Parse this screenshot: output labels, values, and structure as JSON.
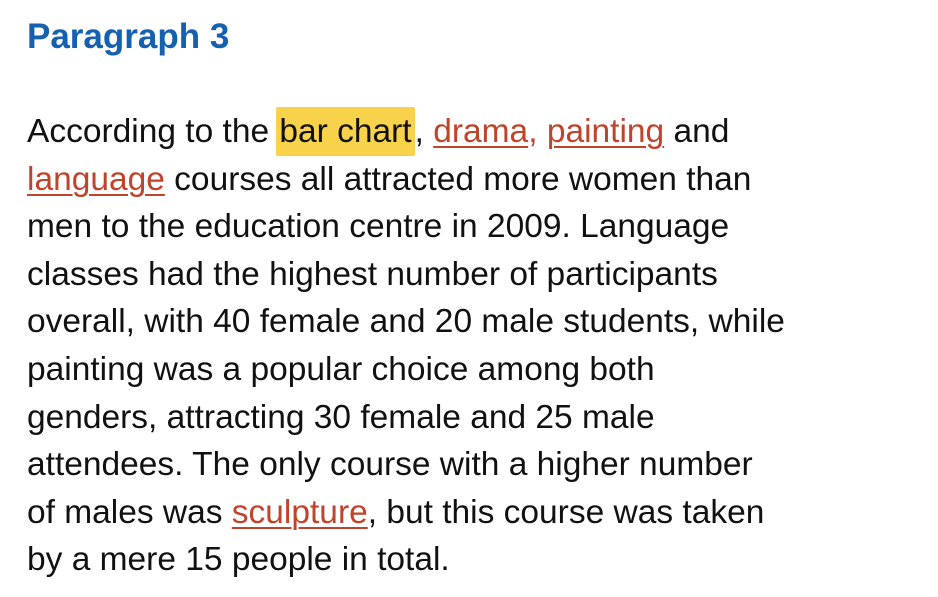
{
  "heading": "Paragraph 3",
  "paragraph": {
    "line1": {
      "before": "According to the ",
      "highlight": "bar chart",
      "after_highlight": ",",
      "space1": " ",
      "link_drama": "drama",
      "comma_after_drama": ",",
      "space2": " ",
      "link_painting": "painting",
      "after": " and"
    },
    "line2": {
      "link_language": "language",
      "after": " courses all attracted more women than"
    },
    "line3": "men to the education centre in 2009. Language",
    "line4": "classes had the highest number of participants",
    "line5": "overall, with 40 female and 20 male students, while",
    "line6": "painting was a popular choice among both",
    "line7": "genders, attracting 30 female and 25 male",
    "line8": "attendees. The only course with a higher number",
    "line9": {
      "before": "of males was ",
      "link_sculpture": "sculpture",
      "after": ", but this course was taken"
    },
    "line10": "by a mere 15 people in total."
  },
  "colors": {
    "heading": "#1660b0",
    "highlight": "#f7d24a",
    "vocab": "#c0432b",
    "text": "#111111"
  }
}
